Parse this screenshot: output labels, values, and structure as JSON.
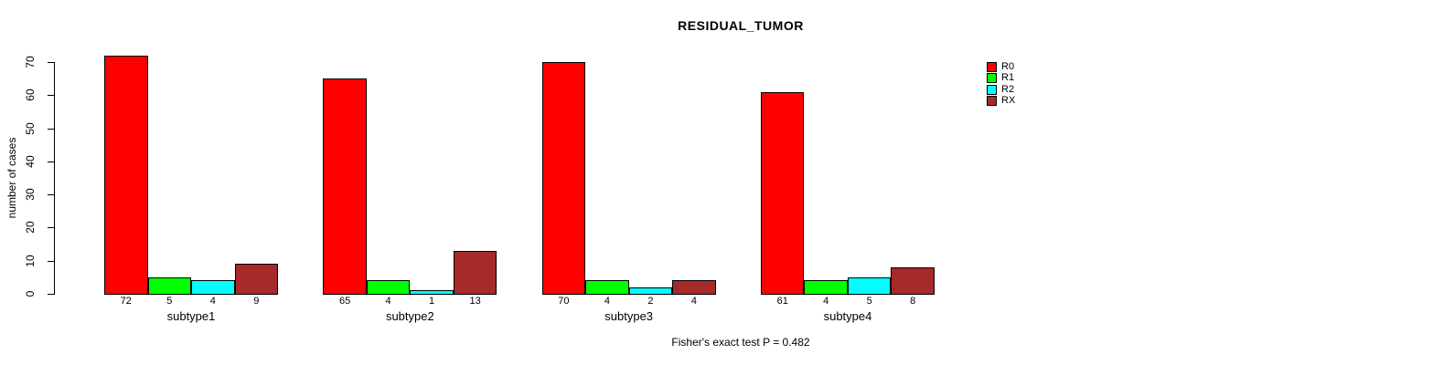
{
  "chart_data": {
    "type": "bar",
    "title": "RESIDUAL_TUMOR",
    "ylabel": "number of cases",
    "xlabel": "",
    "ylim": [
      0,
      70
    ],
    "yticks": [
      0,
      10,
      20,
      30,
      40,
      50,
      60,
      70
    ],
    "grid": false,
    "categories": [
      "subtype1",
      "subtype2",
      "subtype3",
      "subtype4"
    ],
    "series": [
      {
        "name": "R0",
        "color": "#FF0000",
        "values": [
          72,
          65,
          70,
          61
        ]
      },
      {
        "name": "R1",
        "color": "#00FF00",
        "values": [
          5,
          4,
          4,
          4
        ]
      },
      {
        "name": "R2",
        "color": "#00FFFF",
        "values": [
          4,
          1,
          2,
          5
        ]
      },
      {
        "name": "RX",
        "color": "#A52A2A",
        "values": [
          9,
          13,
          4,
          8
        ]
      }
    ],
    "bar_value_labels_shown": true,
    "legend": {
      "position": "top-right",
      "entries": [
        "R0",
        "R1",
        "R2",
        "RX"
      ]
    },
    "annotation": "Fisher's exact test P = 0.482",
    "axis_color": "#000000",
    "bar_border_color": "#000000"
  }
}
